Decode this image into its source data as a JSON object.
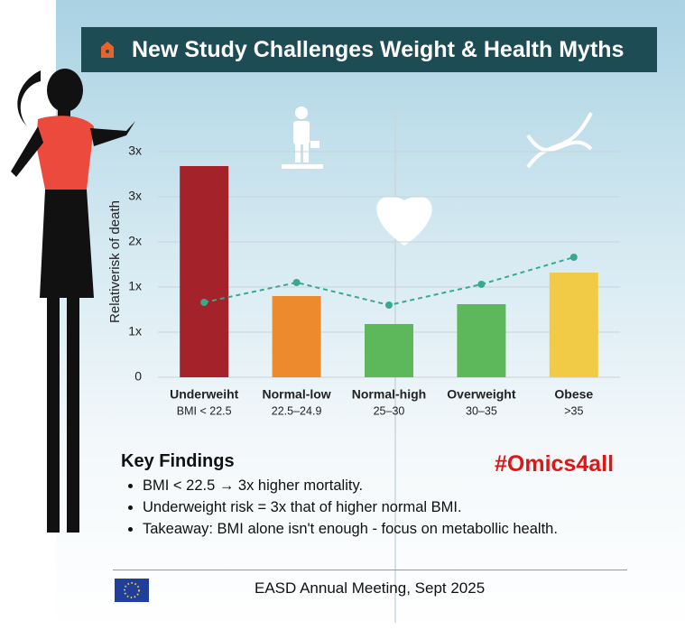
{
  "chart_data": {
    "type": "bar",
    "title": "New Study Challenges Weight & Health Myths",
    "y_label": "Relativerisk of death",
    "categories": [
      "Underweiht",
      "Normal-low",
      "Normal-high",
      "Overweight",
      "Obese"
    ],
    "ranges": [
      "BMI < 22.5",
      "22.5–24.9",
      "25–30",
      "30–35",
      ">35"
    ],
    "values": [
      2.34,
      0.9,
      0.59,
      0.81,
      1.16
    ],
    "colors": [
      "#a4222a",
      "#ee8a2e",
      "#5cb85a",
      "#5cb85a",
      "#f1cb45"
    ],
    "line_values": [
      0.83,
      1.05,
      0.8,
      1.03,
      1.33
    ],
    "line_color": "#3aa88f",
    "ylim": [
      0,
      2.6
    ],
    "yticks": [
      0,
      {
        "value": 0.5,
        "label": "1x"
      },
      {
        "value": 1,
        "label": "1x"
      },
      {
        "value": 1.5,
        "label": "2x"
      },
      {
        "value": 2,
        "label": "3x"
      },
      {
        "value": 2.5,
        "label": "3x"
      }
    ],
    "grid": true
  },
  "key_findings": {
    "heading": "Key Findings",
    "items": [
      "BMI < 22.5 → 3x higher mortality.",
      "Underweight risk = 3x that of higher normal BMI.",
      "Takeaway: BMI alone isn't enough - focus on metabollic health."
    ]
  },
  "hashtag": "#Omics4all",
  "footer": "EASD Annual Meeting, Sept 2025"
}
